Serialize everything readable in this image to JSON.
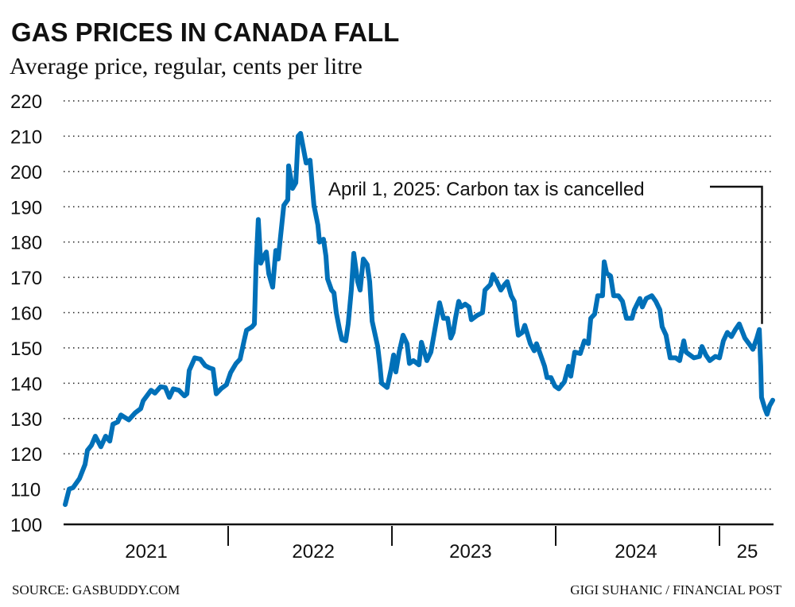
{
  "chart_data": {
    "type": "line",
    "title": "GAS PRICES IN CANADA FALL",
    "subtitle": "Average price, regular, cents per litre",
    "xlabel": "",
    "ylabel": "",
    "ylim": [
      100,
      220
    ],
    "xlim": [
      2021.0,
      2025.33
    ],
    "grid": true,
    "y_ticks": [
      "100",
      "110",
      "120",
      "130",
      "140",
      "150",
      "160",
      "170",
      "180",
      "190",
      "200",
      "210",
      "220"
    ],
    "x_tick_labels": [
      {
        "label": "2021",
        "center": 2021.5
      },
      {
        "label": "2022",
        "center": 2022.52
      },
      {
        "label": "2023",
        "center": 2023.48
      },
      {
        "label": "2024",
        "center": 2024.49
      },
      {
        "label": "25",
        "center": 2025.17
      }
    ],
    "year_dividers": [
      2022,
      2023,
      2024,
      2025
    ],
    "series_color": "#0070b8",
    "annotation": {
      "text": "April 1, 2025: Carbon tax is cancelled",
      "x": 2025.25,
      "y": 155
    },
    "series": [
      {
        "points": [
          [
            2021.005,
            105.6
          ],
          [
            2021.029,
            110
          ],
          [
            2021.053,
            110.4
          ],
          [
            2021.092,
            113
          ],
          [
            2021.126,
            117
          ],
          [
            2021.141,
            121
          ],
          [
            2021.165,
            122.4
          ],
          [
            2021.189,
            125
          ],
          [
            2021.223,
            122
          ],
          [
            2021.252,
            125
          ],
          [
            2021.277,
            123.6
          ],
          [
            2021.296,
            128.4
          ],
          [
            2021.325,
            129
          ],
          [
            2021.345,
            131
          ],
          [
            2021.393,
            129.6
          ],
          [
            2021.432,
            131.6
          ],
          [
            2021.466,
            132.8
          ],
          [
            2021.481,
            135
          ],
          [
            2021.529,
            138
          ],
          [
            2021.553,
            137.2
          ],
          [
            2021.587,
            139
          ],
          [
            2021.616,
            138.8
          ],
          [
            2021.641,
            136
          ],
          [
            2021.665,
            138.4
          ],
          [
            2021.699,
            138
          ],
          [
            2021.733,
            136.4
          ],
          [
            2021.748,
            137
          ],
          [
            2021.762,
            143.6
          ],
          [
            2021.796,
            147.2
          ],
          [
            2021.83,
            146.8
          ],
          [
            2021.859,
            145
          ],
          [
            2021.883,
            144.4
          ],
          [
            2021.908,
            144
          ],
          [
            2021.927,
            137
          ],
          [
            2021.956,
            138.4
          ],
          [
            2021.99,
            139.6
          ],
          [
            2022.015,
            143
          ],
          [
            2022.048,
            145.6
          ],
          [
            2022.073,
            146.8
          ],
          [
            2022.097,
            152
          ],
          [
            2022.112,
            155
          ],
          [
            2022.146,
            156
          ],
          [
            2022.16,
            156.8
          ],
          [
            2022.17,
            172.8
          ],
          [
            2022.184,
            186.4
          ],
          [
            2022.199,
            174
          ],
          [
            2022.218,
            176
          ],
          [
            2022.233,
            177.2
          ],
          [
            2022.248,
            171
          ],
          [
            2022.272,
            167.2
          ],
          [
            2022.291,
            177.6
          ],
          [
            2022.306,
            175.2
          ],
          [
            2022.32,
            181.6
          ],
          [
            2022.34,
            190.4
          ],
          [
            2022.364,
            192
          ],
          [
            2022.369,
            201.6
          ],
          [
            2022.393,
            195.2
          ],
          [
            2022.413,
            196.8
          ],
          [
            2022.427,
            210
          ],
          [
            2022.442,
            210.8
          ],
          [
            2022.476,
            202.4
          ],
          [
            2022.5,
            203.2
          ],
          [
            2022.524,
            190.4
          ],
          [
            2022.548,
            184.8
          ],
          [
            2022.558,
            180
          ],
          [
            2022.582,
            180.8
          ],
          [
            2022.597,
            176
          ],
          [
            2022.607,
            169.6
          ],
          [
            2022.631,
            166.4
          ],
          [
            2022.646,
            165.6
          ],
          [
            2022.66,
            160
          ],
          [
            2022.68,
            155.2
          ],
          [
            2022.694,
            152.4
          ],
          [
            2022.718,
            152
          ],
          [
            2022.733,
            156.8
          ],
          [
            2022.752,
            166.4
          ],
          [
            2022.767,
            176.8
          ],
          [
            2022.791,
            168.8
          ],
          [
            2022.806,
            166.4
          ],
          [
            2022.825,
            175.2
          ],
          [
            2022.849,
            173.6
          ],
          [
            2022.864,
            168.8
          ],
          [
            2022.879,
            157.6
          ],
          [
            2022.913,
            150.4
          ],
          [
            2022.927,
            144.8
          ],
          [
            2022.937,
            140
          ],
          [
            2022.971,
            138.8
          ],
          [
            2022.995,
            144
          ],
          [
            2023.01,
            148
          ],
          [
            2023.024,
            143.2
          ],
          [
            2023.044,
            148.8
          ],
          [
            2023.068,
            153.6
          ],
          [
            2023.092,
            151.2
          ],
          [
            2023.107,
            145.6
          ],
          [
            2023.131,
            146.4
          ],
          [
            2023.165,
            145.2
          ],
          [
            2023.18,
            151.6
          ],
          [
            2023.213,
            146.4
          ],
          [
            2023.238,
            148.8
          ],
          [
            2023.262,
            155.2
          ],
          [
            2023.291,
            162.8
          ],
          [
            2023.315,
            158.4
          ],
          [
            2023.34,
            158.4
          ],
          [
            2023.359,
            152.8
          ],
          [
            2023.374,
            154.4
          ],
          [
            2023.388,
            158.4
          ],
          [
            2023.408,
            163.2
          ],
          [
            2023.422,
            161.6
          ],
          [
            2023.447,
            162.4
          ],
          [
            2023.471,
            161.6
          ],
          [
            2023.485,
            158
          ],
          [
            2023.519,
            159.2
          ],
          [
            2023.553,
            160
          ],
          [
            2023.568,
            166.4
          ],
          [
            2023.602,
            168
          ],
          [
            2023.616,
            170.8
          ],
          [
            2023.641,
            168.8
          ],
          [
            2023.665,
            166.4
          ],
          [
            2023.689,
            168
          ],
          [
            2023.704,
            168.8
          ],
          [
            2023.728,
            164.8
          ],
          [
            2023.747,
            163.2
          ],
          [
            2023.762,
            156.8
          ],
          [
            2023.772,
            153.6
          ],
          [
            2023.796,
            154.4
          ],
          [
            2023.811,
            156.4
          ],
          [
            2023.845,
            151.2
          ],
          [
            2023.869,
            149.2
          ],
          [
            2023.883,
            151.2
          ],
          [
            2023.908,
            148
          ],
          [
            2023.932,
            144.8
          ],
          [
            2023.947,
            141.6
          ],
          [
            2023.971,
            141.6
          ],
          [
            2023.995,
            139.2
          ],
          [
            2024.019,
            138.4
          ],
          [
            2024.053,
            140.4
          ],
          [
            2024.078,
            144.8
          ],
          [
            2024.092,
            142
          ],
          [
            2024.116,
            148.8
          ],
          [
            2024.15,
            148.4
          ],
          [
            2024.175,
            152
          ],
          [
            2024.199,
            151.2
          ],
          [
            2024.214,
            158.4
          ],
          [
            2024.238,
            159.6
          ],
          [
            2024.257,
            164.8
          ],
          [
            2024.286,
            164.8
          ],
          [
            2024.296,
            174.4
          ],
          [
            2024.311,
            171.2
          ],
          [
            2024.335,
            170.4
          ],
          [
            2024.354,
            164.8
          ],
          [
            2024.383,
            164.8
          ],
          [
            2024.408,
            163.2
          ],
          [
            2024.432,
            158.4
          ],
          [
            2024.466,
            158.4
          ],
          [
            2024.48,
            160.8
          ],
          [
            2024.514,
            164
          ],
          [
            2024.529,
            161.6
          ],
          [
            2024.553,
            164
          ],
          [
            2024.587,
            164.8
          ],
          [
            2024.611,
            163.2
          ],
          [
            2024.636,
            160.8
          ],
          [
            2024.65,
            156
          ],
          [
            2024.674,
            153.6
          ],
          [
            2024.699,
            147.2
          ],
          [
            2024.733,
            147.2
          ],
          [
            2024.757,
            146.4
          ],
          [
            2024.782,
            152
          ],
          [
            2024.796,
            148.8
          ],
          [
            2024.82,
            148
          ],
          [
            2024.844,
            147.2
          ],
          [
            2024.878,
            147.6
          ],
          [
            2024.893,
            150.4
          ],
          [
            2024.917,
            148
          ],
          [
            2024.941,
            146.4
          ],
          [
            2024.975,
            147.6
          ],
          [
            2025.0,
            147.2
          ],
          [
            2025.024,
            152
          ],
          [
            2025.048,
            154.4
          ],
          [
            2025.073,
            153.2
          ],
          [
            2025.097,
            155.2
          ],
          [
            2025.121,
            156.8
          ],
          [
            2025.155,
            152.8
          ],
          [
            2025.18,
            151.2
          ],
          [
            2025.204,
            149.6
          ],
          [
            2025.228,
            152.8
          ],
          [
            2025.243,
            155.2
          ],
          [
            2025.252,
            144.8
          ],
          [
            2025.257,
            136
          ],
          [
            2025.277,
            132.8
          ],
          [
            2025.291,
            131.2
          ],
          [
            2025.306,
            133.6
          ],
          [
            2025.325,
            135.2
          ]
        ]
      }
    ],
    "source": "SOURCE: GASBUDDY.COM",
    "credit": "GIGI SUHANIC / FINANCIAL POST"
  }
}
